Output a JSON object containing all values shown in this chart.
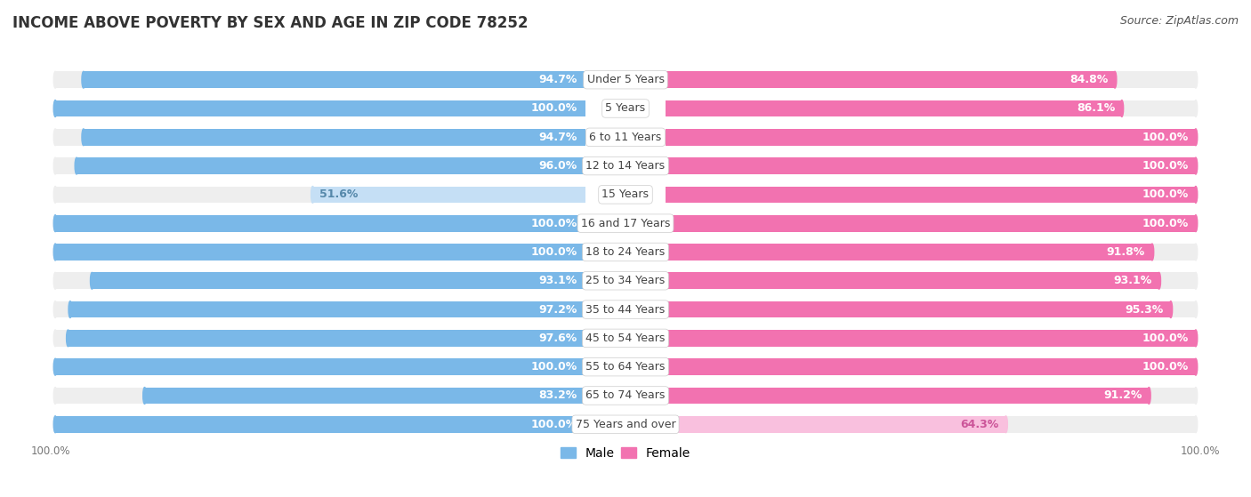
{
  "title": "INCOME ABOVE POVERTY BY SEX AND AGE IN ZIP CODE 78252",
  "source": "Source: ZipAtlas.com",
  "categories": [
    "Under 5 Years",
    "5 Years",
    "6 to 11 Years",
    "12 to 14 Years",
    "15 Years",
    "16 and 17 Years",
    "18 to 24 Years",
    "25 to 34 Years",
    "35 to 44 Years",
    "45 to 54 Years",
    "55 to 64 Years",
    "65 to 74 Years",
    "75 Years and over"
  ],
  "male_values": [
    94.7,
    100.0,
    94.7,
    96.0,
    51.6,
    100.0,
    100.0,
    93.1,
    97.2,
    97.6,
    100.0,
    83.2,
    100.0
  ],
  "female_values": [
    84.8,
    86.1,
    100.0,
    100.0,
    100.0,
    100.0,
    91.8,
    93.1,
    95.3,
    100.0,
    100.0,
    91.2,
    64.3
  ],
  "male_color": "#7ab8e8",
  "male_color_light": "#c5dff5",
  "female_color": "#f272b0",
  "female_color_light": "#f9c0de",
  "male_label": "Male",
  "female_label": "Female",
  "bar_height": 0.58,
  "background_color": "#ffffff",
  "track_color": "#eeeeee",
  "title_fontsize": 12,
  "source_fontsize": 9,
  "label_fontsize": 9,
  "category_fontsize": 9,
  "legend_fontsize": 10,
  "axis_ticks": [
    "100.0%",
    "100.0%"
  ]
}
